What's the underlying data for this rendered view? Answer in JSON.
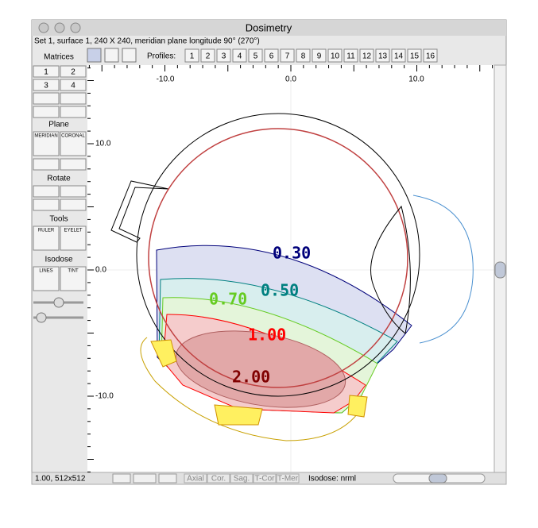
{
  "window": {
    "title": "Dosimetry",
    "info": "Set 1, surface 1, 240 X 240, meridian plane longitude 90° (270°)"
  },
  "sidebar": {
    "matrices": "Matrices",
    "matrix_buttons": [
      "1",
      "2",
      "3",
      "4"
    ],
    "plane": "Plane",
    "plane_buttons": [
      "MERIDIAN",
      "CORONAL"
    ],
    "rotate": "Rotate",
    "tools": "Tools",
    "tool_buttons": [
      "RULER",
      "EYELET"
    ],
    "isodose": "Isodose",
    "isodose_buttons": [
      "LINES",
      "TINT"
    ]
  },
  "toolbar": {
    "profiles_label": "Profiles:",
    "profiles": [
      "1",
      "2",
      "3",
      "4",
      "5",
      "6",
      "7",
      "8",
      "9",
      "10",
      "11",
      "12",
      "13",
      "14",
      "15",
      "16"
    ]
  },
  "plot": {
    "x_labels": [
      "-10.0",
      "0.0",
      "10.0"
    ],
    "y_labels": [
      "10.0",
      "0.0",
      "-10.0"
    ],
    "isodose_labels": [
      {
        "text": "0.30",
        "color": "#00007a"
      },
      {
        "text": "0.50",
        "color": "#008080"
      },
      {
        "text": "0.70",
        "color": "#66cc22"
      },
      {
        "text": "1.00",
        "color": "#ff0000"
      },
      {
        "text": "2.00",
        "color": "#800000"
      }
    ]
  },
  "status": {
    "zoom": "1.00, 512x512",
    "views": [
      "Axial",
      "Cor.",
      "Sag.",
      "T-Cor",
      "T-Mer"
    ],
    "isodose": "Isodose: nrml"
  }
}
